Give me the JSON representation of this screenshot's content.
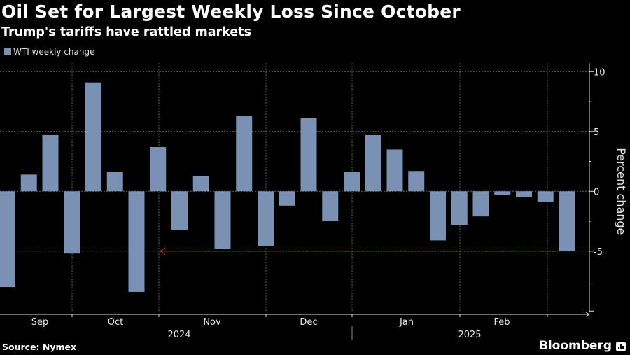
{
  "header": {
    "title": "Oil Set for Largest Weekly Loss Since October",
    "subtitle": "Trump's tariffs have rattled markets"
  },
  "footer": {
    "source": "Source: Nymex",
    "brand": "Bloomberg"
  },
  "colors": {
    "bar": "#7a91b4",
    "annotation_arrow": "#c0262a",
    "gridline": "#666666",
    "background": "#000000"
  },
  "chart_data": {
    "type": "bar",
    "title": "Oil Set for Largest Weekly Loss Since October",
    "subtitle": "Trump's tariffs have rattled markets",
    "xlabel": "",
    "ylabel": "Percent change",
    "ylim": [
      -10,
      10
    ],
    "yticks": [
      10,
      5,
      0,
      -5
    ],
    "grid": true,
    "legend": {
      "position": "top-left",
      "entries": [
        "WTI weekly change"
      ]
    },
    "series": [
      {
        "name": "WTI weekly change",
        "values": [
          -8.0,
          1.4,
          4.7,
          -5.2,
          9.1,
          1.6,
          -8.4,
          3.7,
          -3.2,
          1.3,
          -4.8,
          6.3,
          -4.6,
          -1.2,
          6.1,
          -2.5,
          1.6,
          4.7,
          3.5,
          1.7,
          -4.1,
          -2.8,
          -2.1,
          -0.3,
          -0.5,
          -0.9,
          -5.0
        ]
      }
    ],
    "x_month_labels": [
      "Sep",
      "Oct",
      "Nov",
      "Dec",
      "Jan",
      "Feb"
    ],
    "x_year_labels": [
      "2024",
      "2025"
    ],
    "annotation": {
      "type": "arrow",
      "from_bar_index": 26,
      "to_month_boundary": "Oct/Nov",
      "level": -5.0,
      "note": "Largest weekly loss since October"
    }
  }
}
